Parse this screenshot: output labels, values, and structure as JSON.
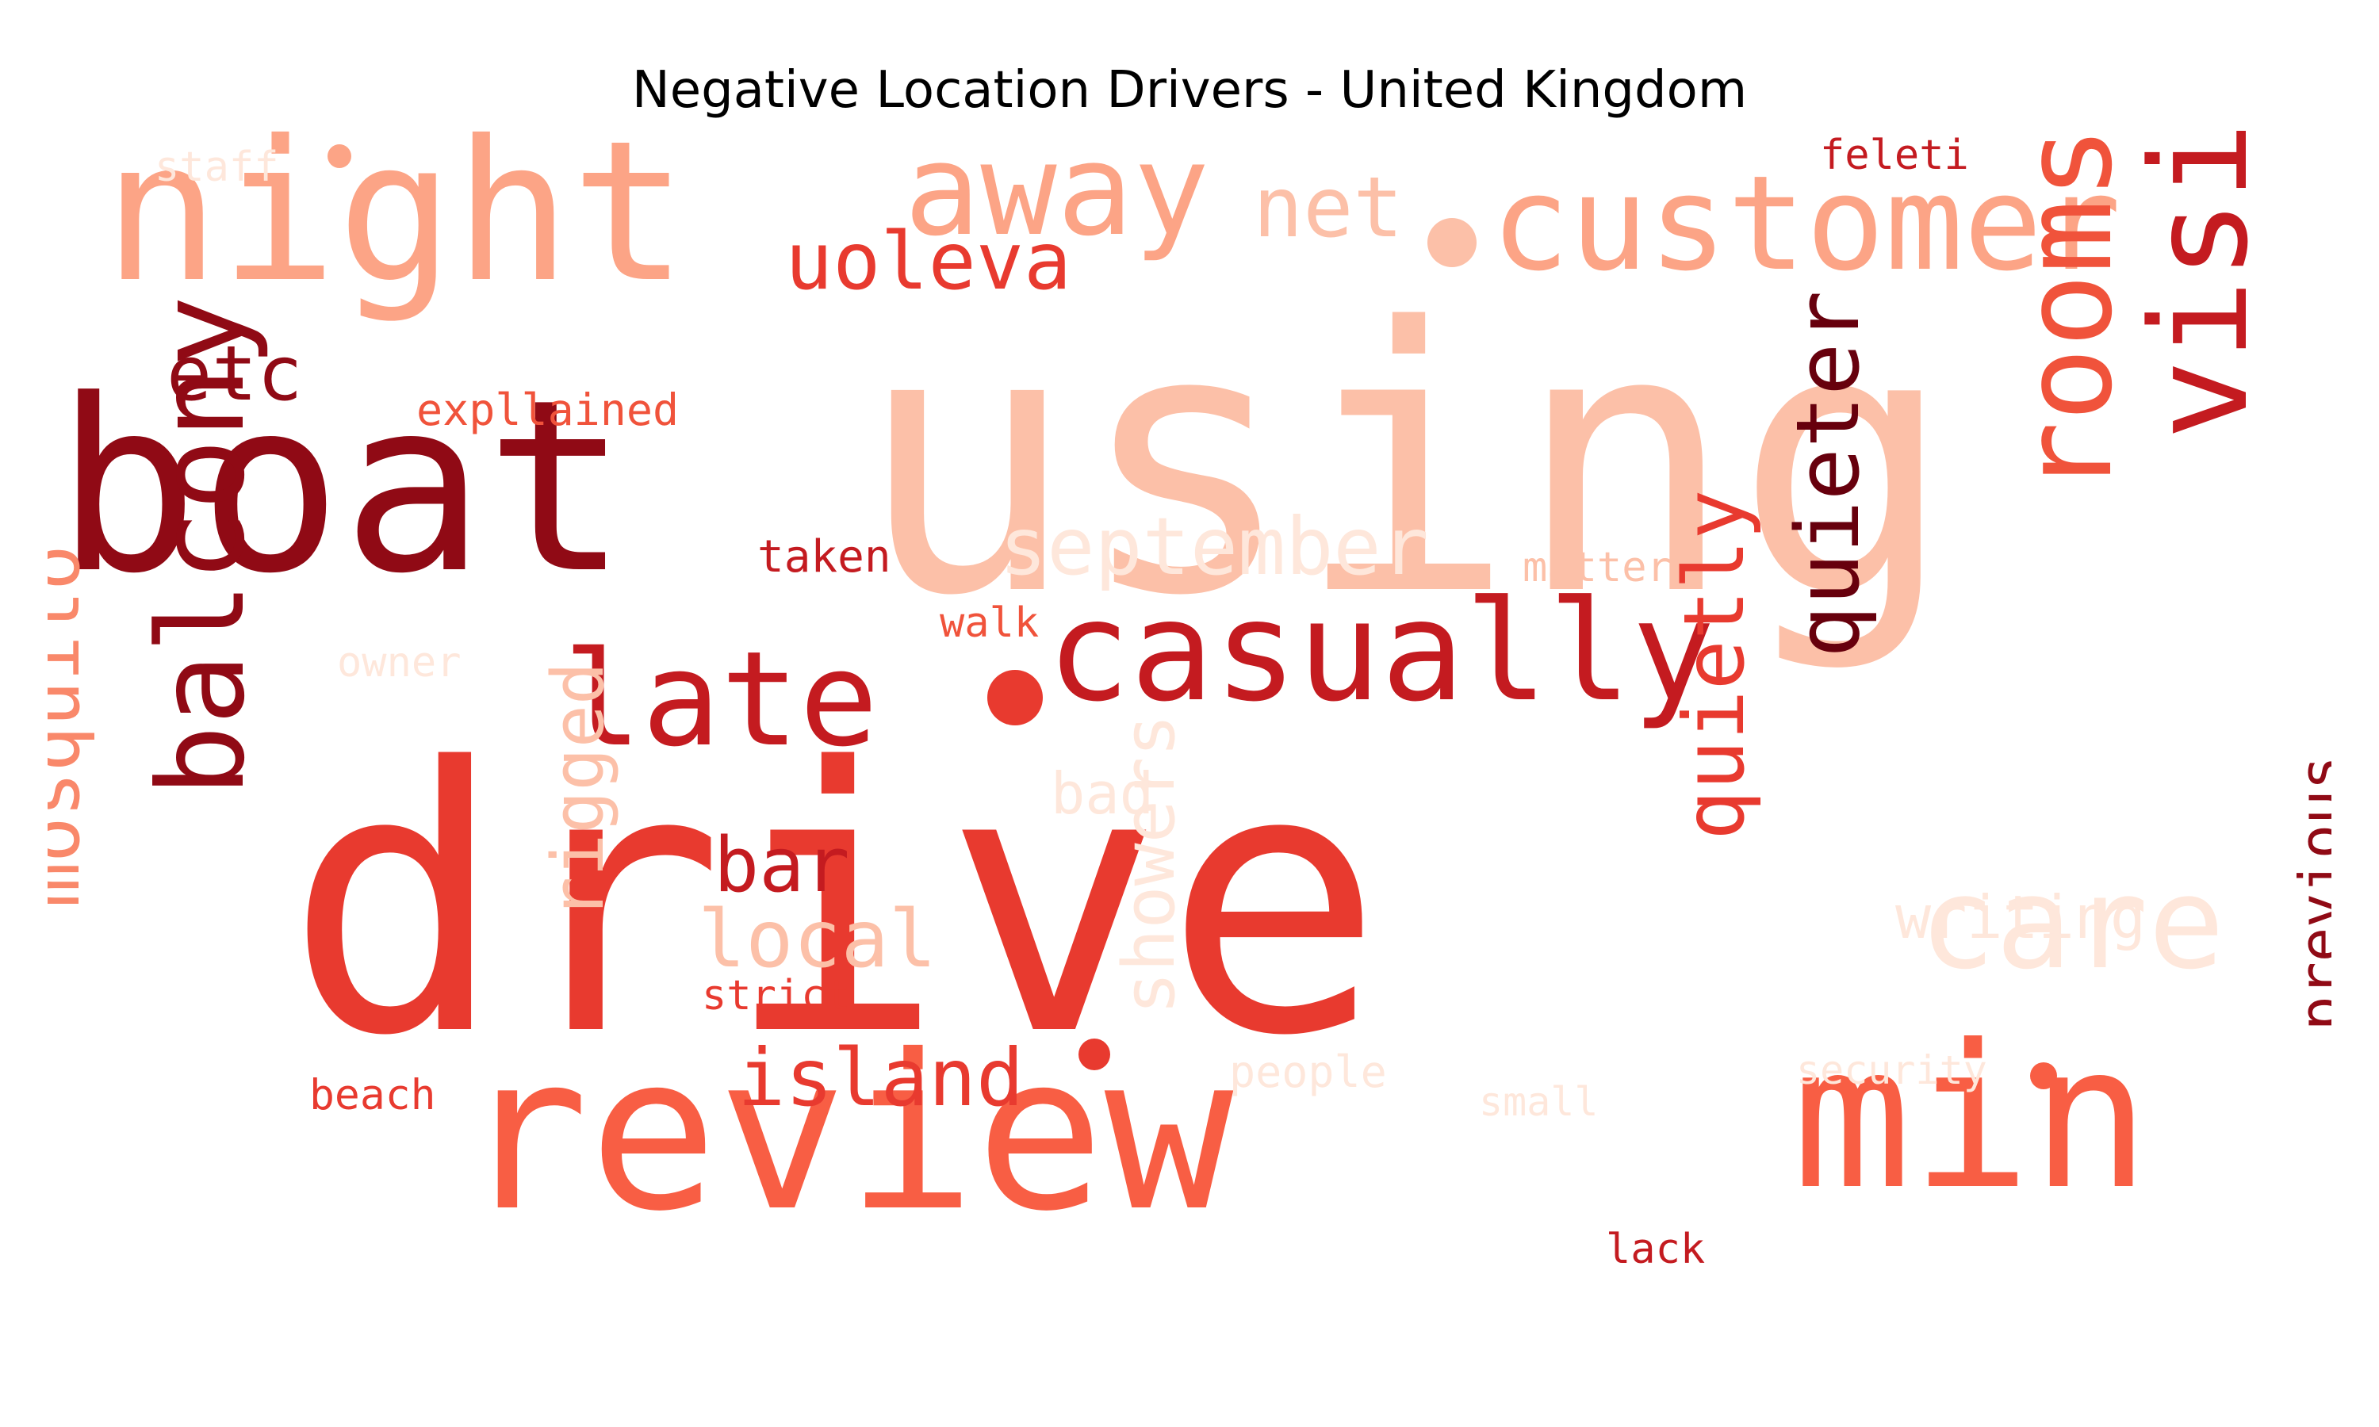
{
  "title": "Negative Location Drivers - United Kingdom",
  "words": [
    {
      "text": "using",
      "color": "#fcc0a8",
      "orient": "h",
      "size": "xxl"
    },
    {
      "text": "drive",
      "color": "#e83a2f",
      "orient": "h",
      "size": "xxl"
    },
    {
      "text": "boat",
      "color": "#900a15",
      "orient": "h",
      "size": "xl"
    },
    {
      "text": "night",
      "color": "#fca486",
      "orient": "h",
      "size": "xl"
    },
    {
      "text": "review",
      "color": "#f85e44",
      "orient": "h",
      "size": "xl"
    },
    {
      "text": "customer",
      "color": "#fca486",
      "orient": "h",
      "size": "l"
    },
    {
      "text": "casually",
      "color": "#c41b20",
      "orient": "h",
      "size": "l"
    },
    {
      "text": "min",
      "color": "#f85e44",
      "orient": "h",
      "size": "xl"
    },
    {
      "text": "away",
      "color": "#fca486",
      "orient": "h",
      "size": "l"
    },
    {
      "text": "late",
      "color": "#c41b20",
      "orient": "h",
      "size": "l"
    },
    {
      "text": "visiting",
      "color": "#c41b20",
      "orient": "v",
      "size": "l"
    },
    {
      "text": "rooms",
      "color": "#f0533b",
      "orient": "v",
      "size": "l"
    },
    {
      "text": "balcony",
      "color": "#900a15",
      "orient": "v",
      "size": "l"
    },
    {
      "text": "care",
      "color": "#fee7db",
      "orient": "h",
      "size": "l"
    },
    {
      "text": "quieter",
      "color": "#67000d",
      "orient": "v",
      "size": "m"
    },
    {
      "text": "quietly",
      "color": "#e83a2f",
      "orient": "v",
      "size": "m"
    },
    {
      "text": "mosquito",
      "color": "#f9886a",
      "orient": "v",
      "size": "m"
    },
    {
      "text": "uoleva",
      "color": "#e83a2f",
      "orient": "h",
      "size": "m"
    },
    {
      "text": "net",
      "color": "#fcc0a8",
      "orient": "h",
      "size": "m"
    },
    {
      "text": "etc",
      "color": "#900a15",
      "orient": "h",
      "size": "m"
    },
    {
      "text": "september",
      "color": "#fee7db",
      "orient": "h",
      "size": "m"
    },
    {
      "text": "island",
      "color": "#e83a2f",
      "orient": "h",
      "size": "m"
    },
    {
      "text": "local",
      "color": "#fcc0a8",
      "orient": "h",
      "size": "m"
    },
    {
      "text": "bar",
      "color": "#c41b20",
      "orient": "h",
      "size": "m"
    },
    {
      "text": "rigged",
      "color": "#fcc0a8",
      "orient": "v",
      "size": "m"
    },
    {
      "text": "showers",
      "color": "#fee7db",
      "orient": "v",
      "size": "m"
    },
    {
      "text": "previous",
      "color": "#900a15",
      "orient": "v",
      "size": "s"
    },
    {
      "text": "writing",
      "color": "#fee7db",
      "orient": "h",
      "size": "s"
    },
    {
      "text": "bad",
      "color": "#fee7db",
      "orient": "h",
      "size": "s"
    },
    {
      "text": "expllained",
      "color": "#f0533b",
      "orient": "h",
      "size": "xs"
    },
    {
      "text": "feleti",
      "color": "#c41b20",
      "orient": "h",
      "size": "xs"
    },
    {
      "text": "staff",
      "color": "#fee7db",
      "orient": "h",
      "size": "xs"
    },
    {
      "text": "taken",
      "color": "#c41b20",
      "orient": "h",
      "size": "xs"
    },
    {
      "text": "matter",
      "color": "#fcc0a8",
      "orient": "h",
      "size": "xs"
    },
    {
      "text": "walk",
      "color": "#f0533b",
      "orient": "h",
      "size": "xs"
    },
    {
      "text": "owner",
      "color": "#fee7db",
      "orient": "h",
      "size": "xs"
    },
    {
      "text": "strict",
      "color": "#e83a2f",
      "orient": "h",
      "size": "xs"
    },
    {
      "text": "beach",
      "color": "#e83a2f",
      "orient": "h",
      "size": "xs"
    },
    {
      "text": "people",
      "color": "#fee7db",
      "orient": "h",
      "size": "xs"
    },
    {
      "text": "small",
      "color": "#fee7db",
      "orient": "h",
      "size": "xs"
    },
    {
      "text": "security",
      "color": "#fee7db",
      "orient": "h",
      "size": "xs"
    },
    {
      "text": "lack",
      "color": "#c41b20",
      "orient": "h",
      "size": "xs"
    }
  ]
}
